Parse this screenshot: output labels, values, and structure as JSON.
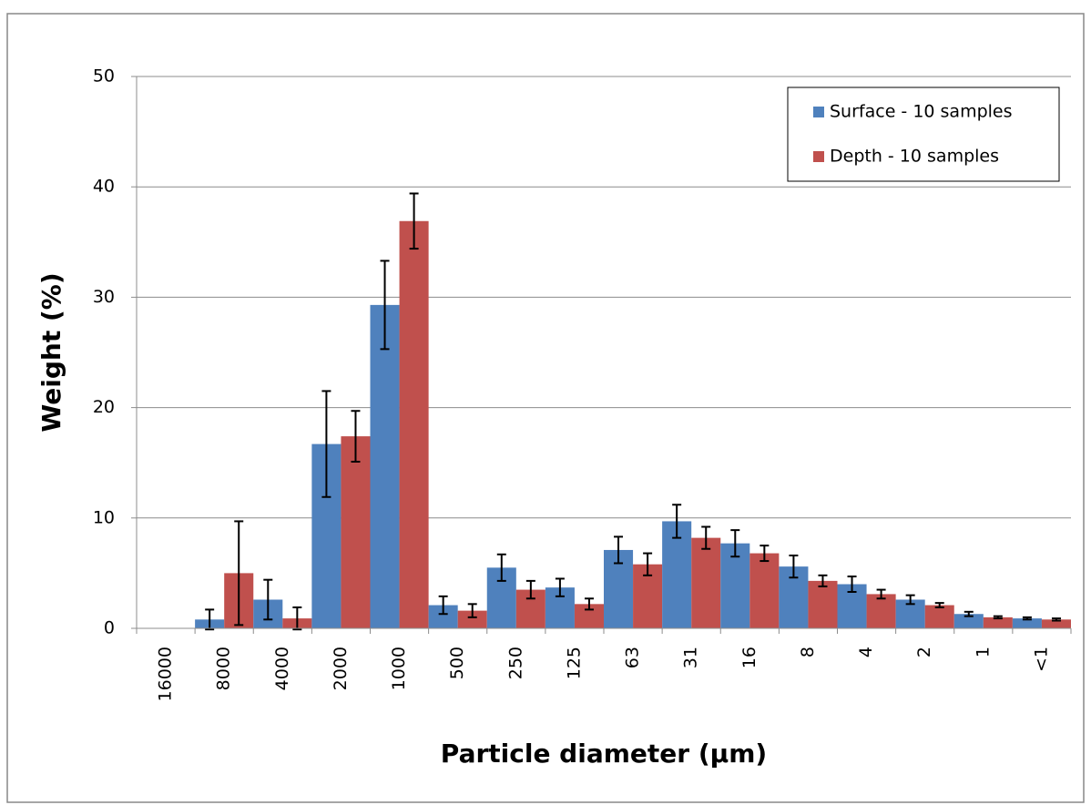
{
  "chart_data": {
    "type": "bar",
    "x_label": "Particle diameter (µm)",
    "y_label": "Weight (%)",
    "categories": [
      "16000",
      "8000",
      "4000",
      "2000",
      "1000",
      "500",
      "250",
      "125",
      "63",
      "31",
      "16",
      "8",
      "4",
      "2",
      "1",
      "<1"
    ],
    "series": [
      {
        "name": "Surface - 10 samples",
        "color": "#4f81bd",
        "values": [
          0,
          0.8,
          2.6,
          16.7,
          29.3,
          2.1,
          5.5,
          3.7,
          7.1,
          9.7,
          7.7,
          5.6,
          4.0,
          2.6,
          1.3,
          0.9
        ],
        "errors": [
          null,
          0.9,
          1.8,
          4.8,
          4.0,
          0.8,
          1.2,
          0.8,
          1.2,
          1.5,
          1.2,
          1.0,
          0.7,
          0.4,
          0.2,
          0.1
        ]
      },
      {
        "name": "Depth - 10 samples",
        "color": "#c0504d",
        "values": [
          0,
          5.0,
          0.9,
          17.4,
          36.9,
          1.6,
          3.5,
          2.2,
          5.8,
          8.2,
          6.8,
          4.3,
          3.1,
          2.1,
          1.0,
          0.8
        ],
        "errors": [
          null,
          4.7,
          1.0,
          2.3,
          2.5,
          0.6,
          0.8,
          0.5,
          1.0,
          1.0,
          0.7,
          0.5,
          0.4,
          0.2,
          0.1,
          0.1
        ]
      }
    ],
    "ylim": [
      0,
      50
    ],
    "yticks": [
      0,
      10,
      20,
      30,
      40,
      50
    ],
    "grid": true,
    "legend": "upper right"
  }
}
